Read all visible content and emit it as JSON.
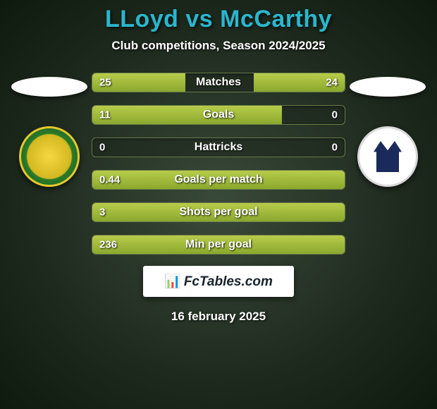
{
  "title": "LLoyd vs McCarthy",
  "subtitle": "Club competitions, Season 2024/2025",
  "footer_brand_text": "FcTables.com",
  "footer_brand_icon": "📊",
  "footer_date": "16 february 2025",
  "colors": {
    "title": "#29b7ce",
    "text": "#ffffff",
    "bar_fill_top": "#b8cc4a",
    "bar_fill_bottom": "#8aa82e",
    "bar_track": "rgba(30,40,30,0.6)",
    "bar_border": "#6a7a4a",
    "badge_bg": "#ffffff",
    "badge_text": "#18222c",
    "bg_center": "#3a4a3a",
    "bg_edge": "#0f1a0f"
  },
  "bars": [
    {
      "label": "Matches",
      "left_value": "25",
      "right_value": "24",
      "left_pct": 37,
      "right_pct": 36
    },
    {
      "label": "Goals",
      "left_value": "11",
      "right_value": "0",
      "left_pct": 75,
      "right_pct": 0
    },
    {
      "label": "Hattricks",
      "left_value": "0",
      "right_value": "0",
      "left_pct": 0,
      "right_pct": 0
    },
    {
      "label": "Goals per match",
      "left_value": "0.44",
      "right_value": "",
      "left_pct": 100,
      "right_pct": 0
    },
    {
      "label": "Shots per goal",
      "left_value": "3",
      "right_value": "",
      "left_pct": 100,
      "right_pct": 0
    },
    {
      "label": "Min per goal",
      "left_value": "236",
      "right_value": "",
      "left_pct": 100,
      "right_pct": 0
    }
  ],
  "crest_left": {
    "name": "Caernarfon Town",
    "bg_outer": "#1a5a1a",
    "bg_inner": "#f5d742"
  },
  "crest_right": {
    "name": "Haverfordwest County",
    "bg": "#ffffff",
    "castle": "#1a2a5a"
  },
  "typography": {
    "title_fontsize": 34,
    "subtitle_fontsize": 17,
    "bar_label_fontsize": 16,
    "bar_value_fontsize": 15
  }
}
